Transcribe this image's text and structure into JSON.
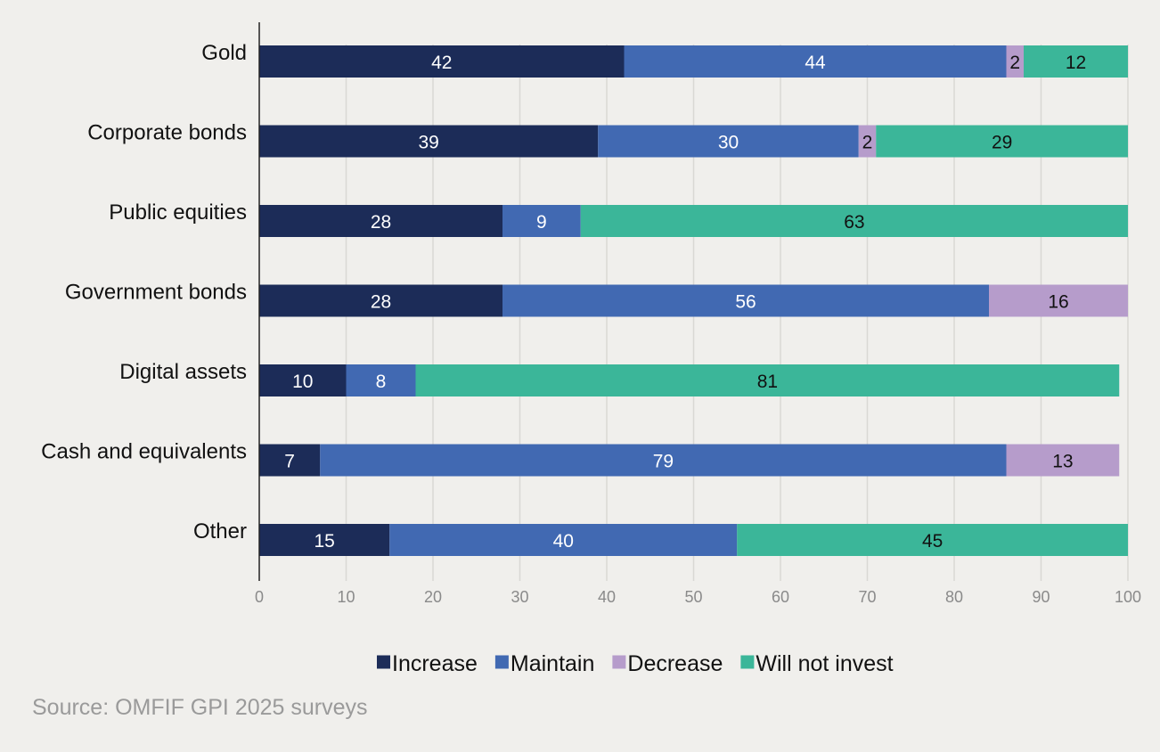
{
  "chart_data": {
    "type": "bar",
    "orientation": "horizontal",
    "stacked": true,
    "categories": [
      "Gold",
      "Corporate bonds",
      "Public equities",
      "Government bonds",
      "Digital assets",
      "Cash and equivalents",
      "Other"
    ],
    "series": [
      {
        "name": "Increase",
        "color": "#1c2c58",
        "label_color": "#ffffff",
        "values": [
          42,
          39,
          28,
          28,
          10,
          7,
          15
        ]
      },
      {
        "name": "Maintain",
        "color": "#4169b2",
        "label_color": "#ffffff",
        "values": [
          44,
          30,
          9,
          56,
          8,
          79,
          40
        ]
      },
      {
        "name": "Decrease",
        "color": "#b69ccb",
        "label_color": "#111111",
        "values": [
          2,
          2,
          0,
          16,
          0,
          13,
          0
        ]
      },
      {
        "name": "Will not invest",
        "color": "#3bb699",
        "label_color": "#111111",
        "values": [
          12,
          29,
          63,
          0,
          81,
          0,
          45
        ]
      }
    ],
    "xlim": [
      0,
      100
    ],
    "xticks": [
      0,
      10,
      20,
      30,
      40,
      50,
      60,
      70,
      80,
      90,
      100
    ],
    "grid": "vertical",
    "legend_position": "bottom",
    "title": "",
    "xlabel": "",
    "ylabel": ""
  },
  "source_text": "Source: OMFIF GPI 2025 surveys",
  "colors": {
    "background": "#f0efec",
    "grid": "#d9d8d4",
    "axis": "#222222"
  }
}
